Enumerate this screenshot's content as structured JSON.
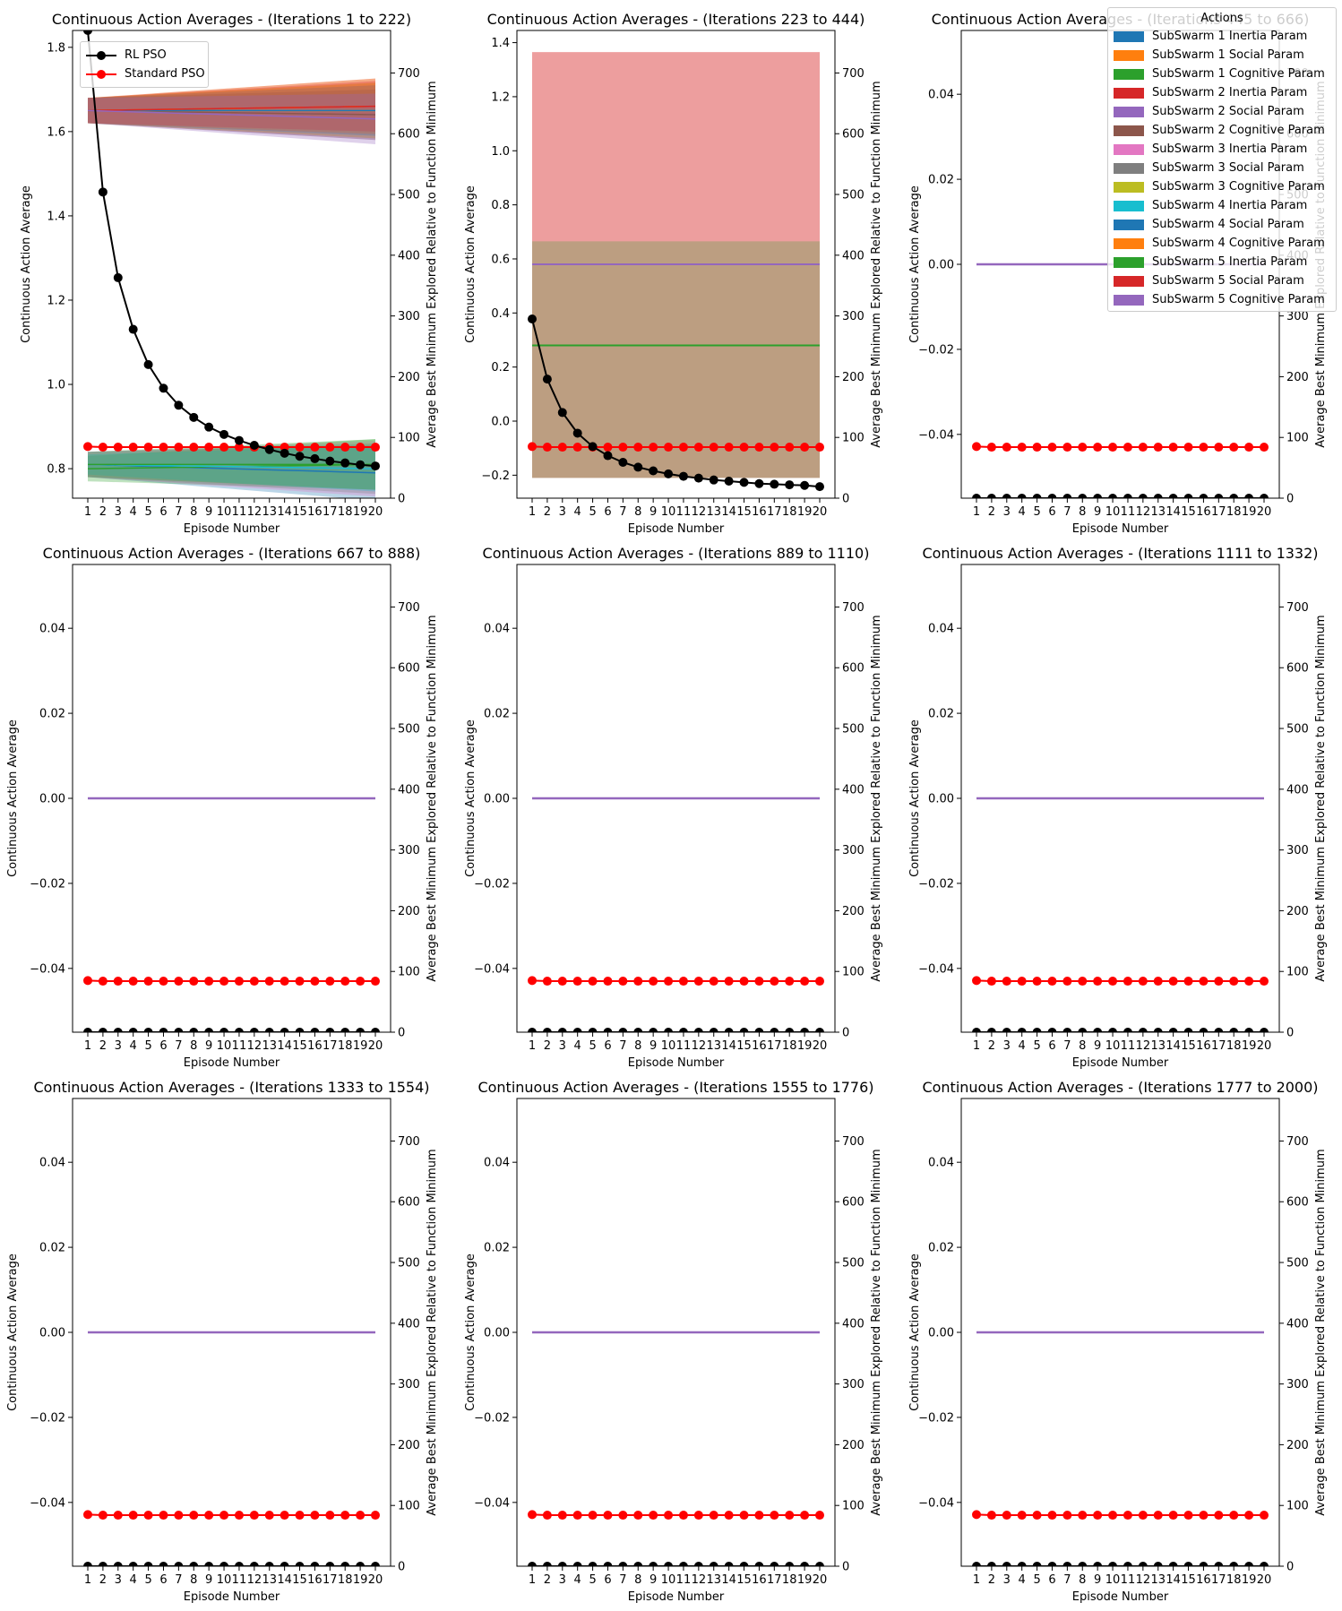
{
  "colors": {
    "tab_blue": "#1f77b4",
    "tab_orange": "#ff7f0e",
    "tab_green": "#2ca02c",
    "tab_red": "#d62728",
    "tab_purple": "#9467bd",
    "tab_brown": "#8c564b",
    "tab_pink": "#e377c2",
    "tab_gray": "#7f7f7f",
    "tab_olive": "#bcbd22",
    "tab_cyan": "#17becf",
    "rl_pso": "#000000",
    "standard_pso": "#ff0000"
  },
  "legend": {
    "title": "Actions",
    "items": [
      {
        "label": "SubSwarm 1 Inertia Param",
        "color": "#1f77b4"
      },
      {
        "label": "SubSwarm 1 Social Param",
        "color": "#ff7f0e"
      },
      {
        "label": "SubSwarm 1 Cognitive Param",
        "color": "#2ca02c"
      },
      {
        "label": "SubSwarm 2 Inertia Param",
        "color": "#d62728"
      },
      {
        "label": "SubSwarm 2 Social Param",
        "color": "#9467bd"
      },
      {
        "label": "SubSwarm 2 Cognitive Param",
        "color": "#8c564b"
      },
      {
        "label": "SubSwarm 3 Inertia Param",
        "color": "#e377c2"
      },
      {
        "label": "SubSwarm 3 Social Param",
        "color": "#7f7f7f"
      },
      {
        "label": "SubSwarm 3 Cognitive Param",
        "color": "#bcbd22"
      },
      {
        "label": "SubSwarm 4 Inertia Param",
        "color": "#17becf"
      },
      {
        "label": "SubSwarm 4 Social Param",
        "color": "#1f77b4"
      },
      {
        "label": "SubSwarm 4 Cognitive Param",
        "color": "#ff7f0e"
      },
      {
        "label": "SubSwarm 5 Inertia Param",
        "color": "#2ca02c"
      },
      {
        "label": "SubSwarm 5 Social Param",
        "color": "#d62728"
      },
      {
        "label": "SubSwarm 5 Cognitive Param",
        "color": "#9467bd"
      }
    ]
  },
  "line_legend": {
    "items": [
      {
        "label": "RL PSO",
        "color": "#000000"
      },
      {
        "label": "Standard PSO",
        "color": "#ff0000"
      }
    ]
  },
  "chart_data": [
    {
      "type": "line",
      "title": "Continuous Action Averages - (Iterations 1 to 222)",
      "xlabel": "Episode Number",
      "ylabel": "Continuous Action Average",
      "y2label": "Average Best Minimum Explored Relative to Function Minimum",
      "categories": [
        "1",
        "2",
        "3",
        "4",
        "5",
        "6",
        "7",
        "8",
        "9",
        "10",
        "11",
        "12",
        "13",
        "14",
        "15",
        "16",
        "17",
        "18",
        "19",
        "20"
      ],
      "ylim": [
        0.73,
        1.84
      ],
      "yticks": [
        "0.8",
        "1.0",
        "1.2",
        "1.4",
        "1.6",
        "1.8"
      ],
      "y2lim": [
        0,
        770
      ],
      "y2ticks": [
        "0",
        "100",
        "200",
        "300",
        "400",
        "500",
        "600",
        "700"
      ],
      "grid": false,
      "legend_placement": "top-left",
      "action_series": [
        {
          "name": "SubSwarm 1 Inertia Param",
          "color": "#1f77b4",
          "start": 0.81,
          "end": 0.79,
          "band_start": 0.05,
          "band_end": 0.11
        },
        {
          "name": "SubSwarm 1 Social Param",
          "color": "#ff7f0e",
          "start": 1.65,
          "end": 1.65,
          "band_start": 0.05,
          "band_end": 0.11
        },
        {
          "name": "SubSwarm 1 Cognitive Param",
          "color": "#2ca02c",
          "start": 0.8,
          "end": 0.81,
          "band_start": 0.05,
          "band_end": 0.1
        },
        {
          "name": "SubSwarm 2 Inertia Param",
          "color": "#d62728",
          "start": 1.65,
          "end": 1.66,
          "band_start": 0.05,
          "band_end": 0.11
        },
        {
          "name": "SubSwarm 2 Social Param",
          "color": "#9467bd",
          "start": 1.65,
          "end": 1.64,
          "band_start": 0.05,
          "band_end": 0.1
        },
        {
          "name": "SubSwarm 2 Cognitive Param",
          "color": "#8c564b",
          "start": 1.65,
          "end": 1.64,
          "band_start": 0.05,
          "band_end": 0.1
        },
        {
          "name": "SubSwarm 3 Inertia Param",
          "color": "#e377c2",
          "start": 0.81,
          "end": 0.8,
          "band_start": 0.05,
          "band_end": 0.11
        },
        {
          "name": "SubSwarm 3 Social Param",
          "color": "#7f7f7f",
          "start": 0.81,
          "end": 0.8,
          "band_start": 0.05,
          "band_end": 0.1
        },
        {
          "name": "SubSwarm 3 Cognitive Param",
          "color": "#bcbd22",
          "start": 1.65,
          "end": 1.65,
          "band_start": 0.05,
          "band_end": 0.11
        },
        {
          "name": "SubSwarm 4 Inertia Param",
          "color": "#17becf",
          "start": 0.81,
          "end": 0.8,
          "band_start": 0.04,
          "band_end": 0.09
        },
        {
          "name": "SubSwarm 4 Social Param",
          "color": "#1f77b4",
          "start": 1.65,
          "end": 1.65,
          "band_start": 0.05,
          "band_end": 0.1
        },
        {
          "name": "SubSwarm 4 Cognitive Param",
          "color": "#ff7f0e",
          "start": 1.65,
          "end": 1.66,
          "band_start": 0.05,
          "band_end": 0.11
        },
        {
          "name": "SubSwarm 5 Inertia Param",
          "color": "#2ca02c",
          "start": 0.81,
          "end": 0.81,
          "band_start": 0.05,
          "band_end": 0.1
        },
        {
          "name": "SubSwarm 5 Social Param",
          "color": "#d62728",
          "start": 1.65,
          "end": 1.66,
          "band_start": 0.05,
          "band_end": 0.1
        },
        {
          "name": "SubSwarm 5 Cognitive Param",
          "color": "#9467bd",
          "start": 1.65,
          "end": 1.63,
          "band_start": 0.05,
          "band_end": 0.1
        }
      ],
      "rl_pso": [
        770,
        504,
        363,
        278,
        220,
        181,
        153,
        133,
        117,
        105,
        95,
        87,
        80,
        74,
        69,
        65,
        61,
        58,
        55,
        53
      ],
      "standard_pso": [
        85,
        84,
        84,
        84,
        84,
        84,
        84,
        84,
        84,
        84,
        84,
        84,
        84,
        84,
        84,
        84,
        84,
        84,
        84,
        84
      ]
    },
    {
      "type": "line",
      "title": "Continuous Action Averages - (Iterations 223 to 444)",
      "xlabel": "Episode Number",
      "ylabel": "Continuous Action Average",
      "y2label": "Average Best Minimum Explored Relative to Function Minimum",
      "categories": [
        "1",
        "2",
        "3",
        "4",
        "5",
        "6",
        "7",
        "8",
        "9",
        "10",
        "11",
        "12",
        "13",
        "14",
        "15",
        "16",
        "17",
        "18",
        "19",
        "20"
      ],
      "ylim": [
        -0.285,
        1.445
      ],
      "yticks": [
        "−0.2",
        "0.0",
        "0.2",
        "0.4",
        "0.6",
        "0.8",
        "1.0",
        "1.2",
        "1.4"
      ],
      "y2lim": [
        0,
        770
      ],
      "y2ticks": [
        "0",
        "100",
        "200",
        "300",
        "400",
        "500",
        "600",
        "700"
      ],
      "grid": false,
      "bands": [
        {
          "low": -0.21,
          "high": 1.365,
          "color": "#d62728",
          "opacity": 0.45
        },
        {
          "low": -0.21,
          "high": 0.665,
          "color": "#2ca02c",
          "opacity": 0.25
        }
      ],
      "action_series": [
        {
          "name": "SubSwarm 2 Social Param",
          "color": "#9467bd",
          "value": 0.58
        },
        {
          "name": "SubSwarm 1 Cognitive Param",
          "color": "#2ca02c",
          "value": 0.28
        }
      ],
      "rl_pso": [
        295,
        196,
        141,
        107,
        85,
        70,
        59,
        51,
        45,
        40,
        36,
        33,
        30,
        28,
        26,
        24,
        23,
        22,
        21,
        19
      ],
      "standard_pso": [
        85,
        84,
        84,
        84,
        84,
        84,
        84,
        84,
        84,
        84,
        84,
        84,
        84,
        84,
        84,
        84,
        84,
        84,
        84,
        84
      ]
    },
    {
      "type": "line",
      "title": "Continuous Action Averages - (Iterations 445 to 666)",
      "xlabel": "Episode Number",
      "ylabel": "Continuous Action Average",
      "y2label": "Average Best Minimum Explored Relative to Function Minimum",
      "categories": [
        "1",
        "2",
        "3",
        "4",
        "5",
        "6",
        "7",
        "8",
        "9",
        "10",
        "11",
        "12",
        "13",
        "14",
        "15",
        "16",
        "17",
        "18",
        "19",
        "20"
      ],
      "ylim": [
        -0.055,
        0.055
      ],
      "yticks": [
        "−0.04",
        "−0.02",
        "0.00",
        "0.02",
        "0.04"
      ],
      "y2lim": [
        0,
        770
      ],
      "y2ticks": [
        "0",
        "100",
        "200",
        "300",
        "400",
        "500",
        "600",
        "700"
      ],
      "grid": false,
      "action_value": 0.0,
      "rl_pso": [
        0,
        0,
        0,
        0,
        0,
        0,
        0,
        0,
        0,
        0,
        0,
        0,
        0,
        0,
        0,
        0,
        0,
        0,
        0,
        0
      ],
      "standard_pso": [
        85,
        84,
        84,
        84,
        84,
        84,
        84,
        84,
        84,
        84,
        84,
        84,
        84,
        84,
        84,
        84,
        84,
        84,
        84,
        84
      ]
    },
    {
      "type": "line",
      "title": "Continuous Action Averages - (Iterations 667 to 888)",
      "xlabel": "Episode Number",
      "ylabel": "Continuous Action Average",
      "y2label": "Average Best Minimum Explored Relative to Function Minimum",
      "categories": [
        "1",
        "2",
        "3",
        "4",
        "5",
        "6",
        "7",
        "8",
        "9",
        "10",
        "11",
        "12",
        "13",
        "14",
        "15",
        "16",
        "17",
        "18",
        "19",
        "20"
      ],
      "ylim": [
        -0.055,
        0.055
      ],
      "yticks": [
        "−0.04",
        "−0.02",
        "0.00",
        "0.02",
        "0.04"
      ],
      "y2lim": [
        0,
        770
      ],
      "y2ticks": [
        "0",
        "100",
        "200",
        "300",
        "400",
        "500",
        "600",
        "700"
      ],
      "grid": false,
      "action_value": 0.0,
      "rl_pso": [
        0,
        0,
        0,
        0,
        0,
        0,
        0,
        0,
        0,
        0,
        0,
        0,
        0,
        0,
        0,
        0,
        0,
        0,
        0,
        0
      ],
      "standard_pso": [
        85,
        84,
        84,
        84,
        84,
        84,
        84,
        84,
        84,
        84,
        84,
        84,
        84,
        84,
        84,
        84,
        84,
        84,
        84,
        84
      ]
    },
    {
      "type": "line",
      "title": "Continuous Action Averages - (Iterations 889 to 1110)",
      "xlabel": "Episode Number",
      "ylabel": "Continuous Action Average",
      "y2label": "Average Best Minimum Explored Relative to Function Minimum",
      "categories": [
        "1",
        "2",
        "3",
        "4",
        "5",
        "6",
        "7",
        "8",
        "9",
        "10",
        "11",
        "12",
        "13",
        "14",
        "15",
        "16",
        "17",
        "18",
        "19",
        "20"
      ],
      "ylim": [
        -0.055,
        0.055
      ],
      "yticks": [
        "−0.04",
        "−0.02",
        "0.00",
        "0.02",
        "0.04"
      ],
      "y2lim": [
        0,
        770
      ],
      "y2ticks": [
        "0",
        "100",
        "200",
        "300",
        "400",
        "500",
        "600",
        "700"
      ],
      "grid": false,
      "action_value": 0.0,
      "rl_pso": [
        0,
        0,
        0,
        0,
        0,
        0,
        0,
        0,
        0,
        0,
        0,
        0,
        0,
        0,
        0,
        0,
        0,
        0,
        0,
        0
      ],
      "standard_pso": [
        85,
        84,
        84,
        84,
        84,
        84,
        84,
        84,
        84,
        84,
        84,
        84,
        84,
        84,
        84,
        84,
        84,
        84,
        84,
        84
      ]
    },
    {
      "type": "line",
      "title": "Continuous Action Averages - (Iterations 1111 to 1332)",
      "xlabel": "Episode Number",
      "ylabel": "Continuous Action Average",
      "y2label": "Average Best Minimum Explored Relative to Function Minimum",
      "categories": [
        "1",
        "2",
        "3",
        "4",
        "5",
        "6",
        "7",
        "8",
        "9",
        "10",
        "11",
        "12",
        "13",
        "14",
        "15",
        "16",
        "17",
        "18",
        "19",
        "20"
      ],
      "ylim": [
        -0.055,
        0.055
      ],
      "yticks": [
        "−0.04",
        "−0.02",
        "0.00",
        "0.02",
        "0.04"
      ],
      "y2lim": [
        0,
        770
      ],
      "y2ticks": [
        "0",
        "100",
        "200",
        "300",
        "400",
        "500",
        "600",
        "700"
      ],
      "grid": false,
      "action_value": 0.0,
      "rl_pso": [
        0,
        0,
        0,
        0,
        0,
        0,
        0,
        0,
        0,
        0,
        0,
        0,
        0,
        0,
        0,
        0,
        0,
        0,
        0,
        0
      ],
      "standard_pso": [
        85,
        84,
        84,
        84,
        84,
        84,
        84,
        84,
        84,
        84,
        84,
        84,
        84,
        84,
        84,
        84,
        84,
        84,
        84,
        84
      ]
    },
    {
      "type": "line",
      "title": "Continuous Action Averages - (Iterations 1333 to 1554)",
      "xlabel": "Episode Number",
      "ylabel": "Continuous Action Average",
      "y2label": "Average Best Minimum Explored Relative to Function Minimum",
      "categories": [
        "1",
        "2",
        "3",
        "4",
        "5",
        "6",
        "7",
        "8",
        "9",
        "10",
        "11",
        "12",
        "13",
        "14",
        "15",
        "16",
        "17",
        "18",
        "19",
        "20"
      ],
      "ylim": [
        -0.055,
        0.055
      ],
      "yticks": [
        "−0.04",
        "−0.02",
        "0.00",
        "0.02",
        "0.04"
      ],
      "y2lim": [
        0,
        770
      ],
      "y2ticks": [
        "0",
        "100",
        "200",
        "300",
        "400",
        "500",
        "600",
        "700"
      ],
      "grid": false,
      "action_value": 0.0,
      "rl_pso": [
        0,
        0,
        0,
        0,
        0,
        0,
        0,
        0,
        0,
        0,
        0,
        0,
        0,
        0,
        0,
        0,
        0,
        0,
        0,
        0
      ],
      "standard_pso": [
        85,
        84,
        84,
        84,
        84,
        84,
        84,
        84,
        84,
        84,
        84,
        84,
        84,
        84,
        84,
        84,
        84,
        84,
        84,
        84
      ]
    },
    {
      "type": "line",
      "title": "Continuous Action Averages - (Iterations 1555 to 1776)",
      "xlabel": "Episode Number",
      "ylabel": "Continuous Action Average",
      "y2label": "Average Best Minimum Explored Relative to Function Minimum",
      "categories": [
        "1",
        "2",
        "3",
        "4",
        "5",
        "6",
        "7",
        "8",
        "9",
        "10",
        "11",
        "12",
        "13",
        "14",
        "15",
        "16",
        "17",
        "18",
        "19",
        "20"
      ],
      "ylim": [
        -0.055,
        0.055
      ],
      "yticks": [
        "−0.04",
        "−0.02",
        "0.00",
        "0.02",
        "0.04"
      ],
      "y2lim": [
        0,
        770
      ],
      "y2ticks": [
        "0",
        "100",
        "200",
        "300",
        "400",
        "500",
        "600",
        "700"
      ],
      "grid": false,
      "action_value": 0.0,
      "rl_pso": [
        0,
        0,
        0,
        0,
        0,
        0,
        0,
        0,
        0,
        0,
        0,
        0,
        0,
        0,
        0,
        0,
        0,
        0,
        0,
        0
      ],
      "standard_pso": [
        85,
        84,
        84,
        84,
        84,
        84,
        84,
        84,
        84,
        84,
        84,
        84,
        84,
        84,
        84,
        84,
        84,
        84,
        84,
        84
      ]
    },
    {
      "type": "line",
      "title": "Continuous Action Averages - (Iterations 1777 to 2000)",
      "xlabel": "Episode Number",
      "ylabel": "Continuous Action Average",
      "y2label": "Average Best Minimum Explored Relative to Function Minimum",
      "categories": [
        "1",
        "2",
        "3",
        "4",
        "5",
        "6",
        "7",
        "8",
        "9",
        "10",
        "11",
        "12",
        "13",
        "14",
        "15",
        "16",
        "17",
        "18",
        "19",
        "20"
      ],
      "ylim": [
        -0.055,
        0.055
      ],
      "yticks": [
        "−0.04",
        "−0.02",
        "0.00",
        "0.02",
        "0.04"
      ],
      "y2lim": [
        0,
        770
      ],
      "y2ticks": [
        "0",
        "100",
        "200",
        "300",
        "400",
        "500",
        "600",
        "700"
      ],
      "grid": false,
      "action_value": 0.0,
      "rl_pso": [
        0,
        0,
        0,
        0,
        0,
        0,
        0,
        0,
        0,
        0,
        0,
        0,
        0,
        0,
        0,
        0,
        0,
        0,
        0,
        0
      ],
      "standard_pso": [
        85,
        84,
        84,
        84,
        84,
        84,
        84,
        84,
        84,
        84,
        84,
        84,
        84,
        84,
        84,
        84,
        84,
        84,
        84,
        84
      ]
    }
  ]
}
